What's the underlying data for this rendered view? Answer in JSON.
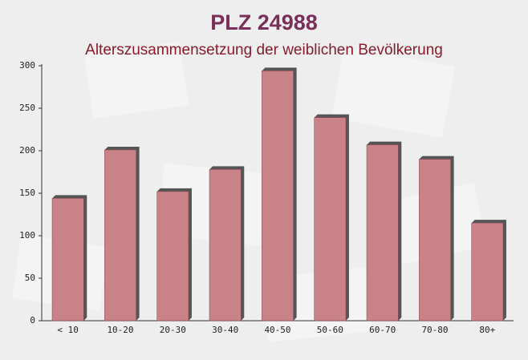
{
  "chart_data": {
    "type": "bar",
    "title": "PLZ 24988",
    "subtitle": "Alterszusammensetzung der weiblichen Bevölkerung",
    "categories": [
      "< 10",
      "10-20",
      "20-30",
      "30-40",
      "40-50",
      "50-60",
      "60-70",
      "70-80",
      "80+"
    ],
    "values": [
      144,
      201,
      152,
      178,
      294,
      239,
      207,
      190,
      115
    ],
    "color": "#c4777c",
    "ylim": [
      0,
      300
    ],
    "yticks": [
      0,
      50,
      100,
      150,
      200,
      250,
      300
    ]
  }
}
